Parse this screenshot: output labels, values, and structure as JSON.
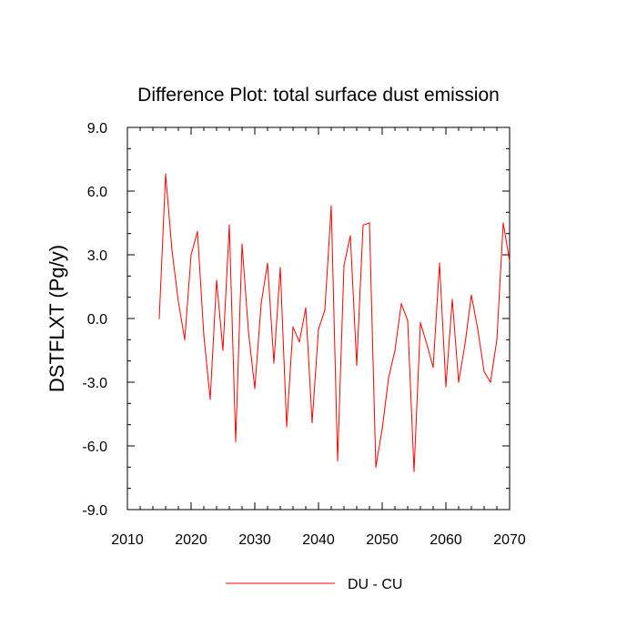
{
  "chart_data": {
    "type": "line",
    "title": "Difference Plot: total surface dust emission",
    "xlabel": "",
    "ylabel": "DSTFLXT  (Pg/y)",
    "xlim": [
      2010,
      2070
    ],
    "ylim": [
      -9.0,
      9.0
    ],
    "xticks": [
      2010,
      2020,
      2030,
      2040,
      2050,
      2060,
      2070
    ],
    "xtick_labels": [
      "2010",
      "2020",
      "2030",
      "2040",
      "2050",
      "2060",
      "2070"
    ],
    "yticks": [
      9.0,
      6.0,
      3.0,
      0.0,
      -3.0,
      -6.0,
      -9.0
    ],
    "ytick_labels": [
      "9.0",
      "6.0",
      "3.0",
      "0.0",
      "-3.0",
      "-6.0",
      "-9.0"
    ],
    "grid": false,
    "legend_position": "bottom",
    "series": [
      {
        "name": "DU - CU",
        "color": "#ff0000",
        "x": [
          2015,
          2016,
          2017,
          2018,
          2019,
          2020,
          2021,
          2022,
          2023,
          2024,
          2025,
          2026,
          2027,
          2028,
          2029,
          2030,
          2031,
          2032,
          2033,
          2034,
          2035,
          2036,
          2037,
          2038,
          2039,
          2040,
          2041,
          2042,
          2043,
          2044,
          2045,
          2046,
          2047,
          2048,
          2049,
          2050,
          2051,
          2052,
          2053,
          2054,
          2055,
          2056,
          2057,
          2058,
          2059,
          2060,
          2061,
          2062,
          2063,
          2064,
          2065,
          2066,
          2067,
          2068,
          2069,
          2070
        ],
        "y": [
          0.0,
          6.8,
          3.2,
          0.8,
          -1.0,
          3.0,
          4.1,
          -0.8,
          -3.8,
          1.8,
          -1.5,
          4.4,
          -5.8,
          3.5,
          -0.6,
          -3.3,
          0.7,
          2.6,
          -2.1,
          2.4,
          -5.1,
          -0.4,
          -1.1,
          0.5,
          -4.9,
          -0.5,
          0.4,
          5.3,
          -6.7,
          2.5,
          3.9,
          -2.2,
          4.4,
          4.5,
          -7.0,
          -5.2,
          -2.8,
          -1.5,
          0.7,
          -0.1,
          -7.2,
          -0.2,
          -1.2,
          -2.3,
          2.6,
          -3.2,
          0.9,
          -3.0,
          -1.2,
          1.1,
          -0.5,
          -2.5,
          -3.0,
          -1.0,
          4.5,
          2.7
        ]
      }
    ]
  }
}
